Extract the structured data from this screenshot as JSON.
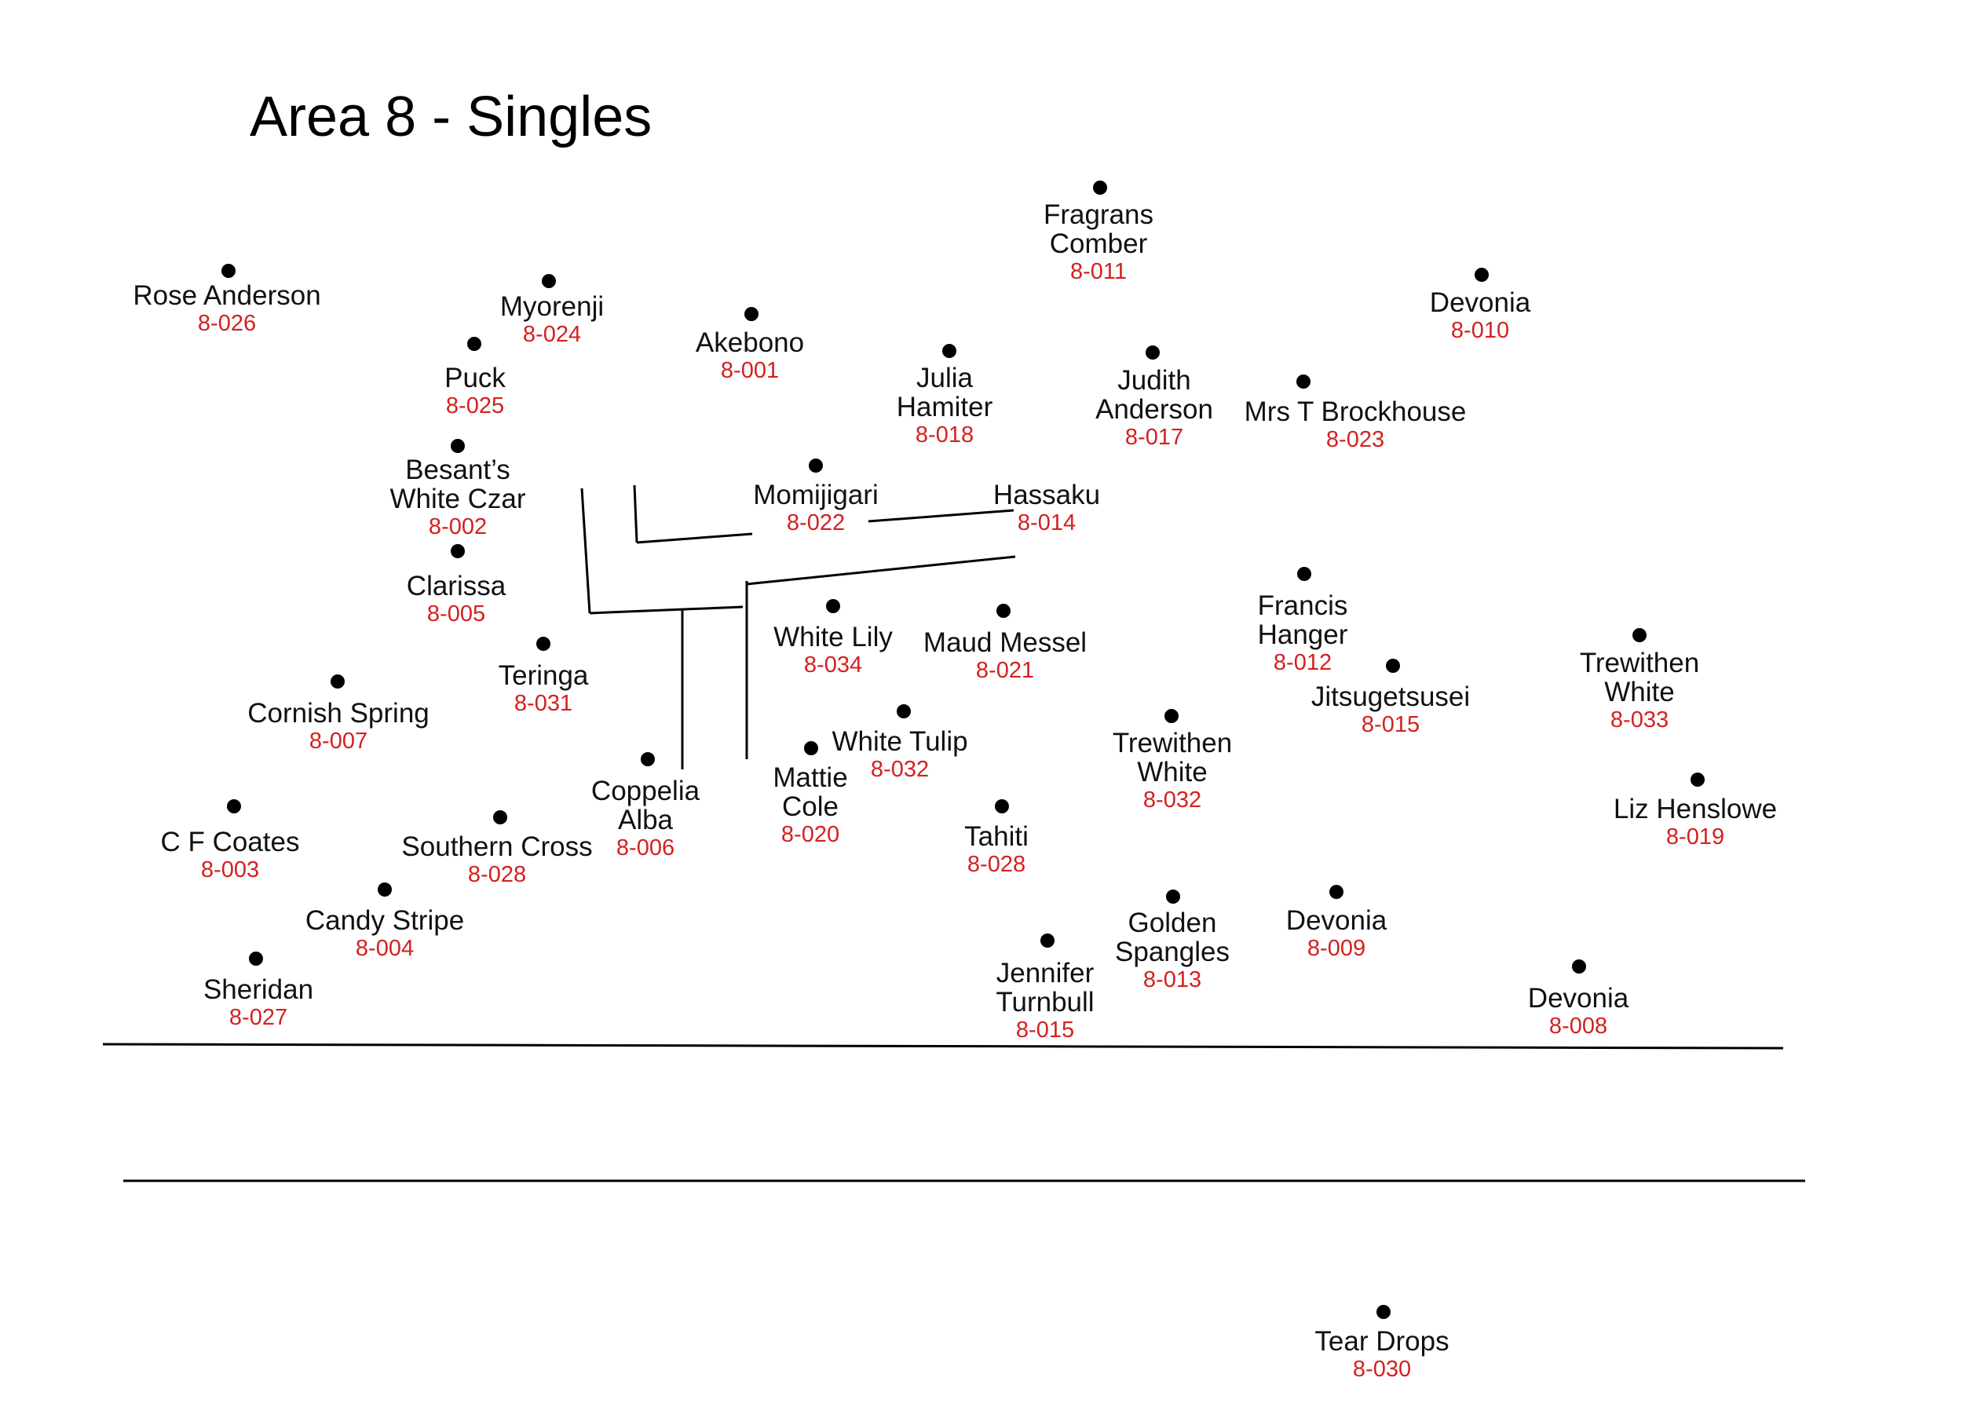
{
  "title": "Area 8 - Singles",
  "colors": {
    "name": "#111111",
    "code": "#d42020",
    "dot": "#000000",
    "line": "#000000"
  },
  "plants": [
    {
      "name": "Rose Anderson",
      "code": "8-026"
    },
    {
      "name": "Myorenji",
      "code": "8-024"
    },
    {
      "name": "Puck",
      "code": "8-025"
    },
    {
      "name": "Akebono",
      "code": "8-001"
    },
    {
      "name": "Fragrans\nComber",
      "code": "8-011"
    },
    {
      "name": "Devonia",
      "code": "8-010"
    },
    {
      "name": "Julia\nHamiter",
      "code": "8-018"
    },
    {
      "name": "Judith\nAnderson",
      "code": "8-017"
    },
    {
      "name": "Mrs T Brockhouse",
      "code": "8-023"
    },
    {
      "name": "Besant’s\nWhite Czar",
      "code": "8-002"
    },
    {
      "name": "Momijigari",
      "code": "8-022"
    },
    {
      "name": "Hassaku",
      "code": "8-014"
    },
    {
      "name": "Clarissa",
      "code": "8-005"
    },
    {
      "name": "White Lily",
      "code": "8-034"
    },
    {
      "name": "Maud Messel",
      "code": "8-021"
    },
    {
      "name": "Francis\nHanger",
      "code": "8-012"
    },
    {
      "name": "Teringa",
      "code": "8-031"
    },
    {
      "name": "Jitsugetsusei",
      "code": "8-015"
    },
    {
      "name": "Trewithen\nWhite",
      "code": "8-033"
    },
    {
      "name": "Cornish Spring",
      "code": "8-007"
    },
    {
      "name": "White Tulip",
      "code": "8-032"
    },
    {
      "name": "Trewithen\nWhite",
      "code": "8-032"
    },
    {
      "name": "Mattie\nCole",
      "code": "8-020"
    },
    {
      "name": "Coppelia\nAlba",
      "code": "8-006"
    },
    {
      "name": "Liz Henslowe",
      "code": "8-019"
    },
    {
      "name": "C F Coates",
      "code": "8-003"
    },
    {
      "name": "Southern Cross",
      "code": "8-028"
    },
    {
      "name": "Tahiti",
      "code": "8-028"
    },
    {
      "name": "Candy Stripe",
      "code": "8-004"
    },
    {
      "name": "Golden\nSpangles",
      "code": "8-013"
    },
    {
      "name": "Devonia",
      "code": "8-009"
    },
    {
      "name": "Jennifer\nTurnbull",
      "code": "8-015"
    },
    {
      "name": "Sheridan",
      "code": "8-027"
    },
    {
      "name": "Devonia",
      "code": "8-008"
    },
    {
      "name": "Tear Drops",
      "code": "8-030"
    }
  ]
}
